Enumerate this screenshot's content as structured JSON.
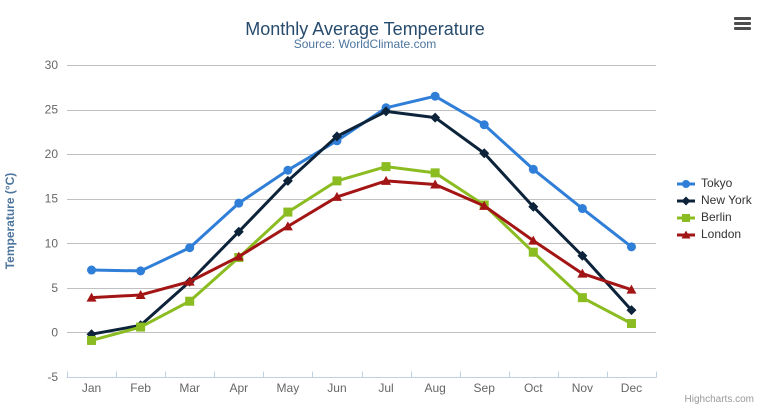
{
  "chart_data": {
    "type": "line",
    "title": "Monthly Average Temperature",
    "subtitle": "Source: WorldClimate.com",
    "categories": [
      "Jan",
      "Feb",
      "Mar",
      "Apr",
      "May",
      "Jun",
      "Jul",
      "Aug",
      "Sep",
      "Oct",
      "Nov",
      "Dec"
    ],
    "xlabel": "",
    "ylabel": "Temperature (°C)",
    "ylim": [
      -5,
      30
    ],
    "yticks": [
      -5,
      0,
      5,
      10,
      15,
      20,
      25,
      30
    ],
    "grid": true,
    "legend_position": "right",
    "series": [
      {
        "name": "Tokyo",
        "color": "#2f7ed8",
        "marker": "circle",
        "values": [
          7.0,
          6.9,
          9.5,
          14.5,
          18.2,
          21.5,
          25.2,
          26.5,
          23.3,
          18.3,
          13.9,
          9.6
        ]
      },
      {
        "name": "New York",
        "color": "#0d233a",
        "marker": "diamond",
        "values": [
          -0.2,
          0.8,
          5.7,
          11.3,
          17.0,
          22.0,
          24.8,
          24.1,
          20.1,
          14.1,
          8.6,
          2.5
        ]
      },
      {
        "name": "Berlin",
        "color": "#8bbc21",
        "marker": "square",
        "values": [
          -0.9,
          0.6,
          3.5,
          8.4,
          13.5,
          17.0,
          18.6,
          17.9,
          14.3,
          9.0,
          3.9,
          1.0
        ]
      },
      {
        "name": "London",
        "color": "#a31515",
        "marker": "triangle",
        "values": [
          3.9,
          4.2,
          5.7,
          8.5,
          11.9,
          15.2,
          17.0,
          16.6,
          14.2,
          10.3,
          6.6,
          4.8
        ]
      }
    ],
    "credits": "Highcharts.com"
  },
  "theme": {
    "title_color": "#274b6d",
    "subtitle_color": "#4d759e",
    "axis_title_color": "#4d759e",
    "tick_label_color": "#666666",
    "grid_color": "#c0c0c0",
    "axis_line_color": "#c0d0e0",
    "legend_text_color": "#333333",
    "credits_color": "#999999",
    "menu_icon_color": "#4d4d4d"
  },
  "icons": {
    "export_menu": "hamburger-icon"
  }
}
